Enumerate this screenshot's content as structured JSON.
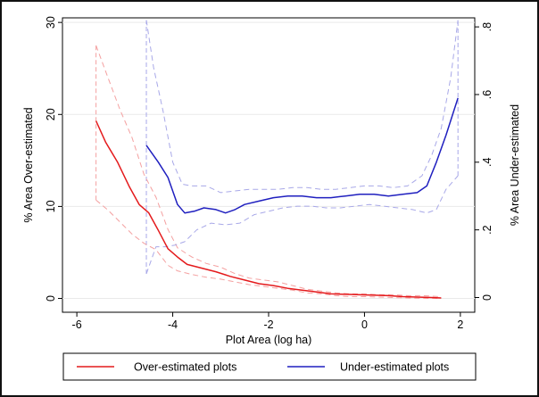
{
  "chart_data": {
    "type": "line",
    "title": "",
    "xlabel": "Plot Area (log ha)",
    "ylabel_left": "% Area Over-estimated",
    "ylabel_right": "% Area Under-estimated",
    "xlim": [
      -6.3,
      2.3
    ],
    "ylim_left": [
      -1.5,
      30.5
    ],
    "ylim_right": [
      -0.0435,
      0.8267
    ],
    "x_ticks": [
      -6,
      -4,
      -2,
      0,
      2
    ],
    "x_tick_labels": [
      "-6",
      "-4",
      "-2",
      "0",
      "2"
    ],
    "y_left_ticks": [
      0,
      10,
      20,
      30
    ],
    "y_left_tick_labels": [
      "0",
      "10",
      "20",
      "30"
    ],
    "y_right_ticks": [
      0,
      0.2,
      0.4,
      0.6,
      0.8
    ],
    "y_right_tick_labels": [
      "0",
      ".2",
      ".4",
      ".6",
      ".8"
    ],
    "grid": "horizontal",
    "legend_position": "bottom",
    "series": [
      {
        "name": "Over-estimated plots",
        "axis": "left",
        "color": "#e41a1c",
        "x": [
          -5.6,
          -5.4,
          -5.15,
          -4.9,
          -4.7,
          -4.5,
          -4.3,
          -4.1,
          -3.9,
          -3.7,
          -3.4,
          -3.1,
          -2.8,
          -2.5,
          -2.2,
          -1.9,
          -1.6,
          -1.3,
          -1.0,
          -0.7,
          -0.4,
          -0.1,
          0.2,
          0.5,
          0.8,
          1.1,
          1.4,
          1.6
        ],
        "y": [
          19.3,
          17.0,
          14.8,
          12.1,
          10.2,
          9.3,
          7.4,
          5.4,
          4.5,
          3.7,
          3.3,
          2.9,
          2.4,
          2.0,
          1.6,
          1.4,
          1.1,
          0.9,
          0.7,
          0.5,
          0.45,
          0.4,
          0.35,
          0.3,
          0.2,
          0.15,
          0.1,
          0.05
        ]
      },
      {
        "name": "Over-estimated plots (upper CI)",
        "axis": "left",
        "color": "#f4a0a0",
        "dashed": true,
        "x": [
          -5.6,
          -5.35,
          -5.1,
          -4.85,
          -4.6,
          -4.35,
          -4.1,
          -3.9,
          -3.6,
          -3.3,
          -3.0,
          -2.7,
          -2.4,
          -2.1,
          -1.8,
          -1.5,
          -1.2,
          -0.9,
          -0.6,
          -0.3,
          0.0,
          0.3,
          0.6,
          0.9,
          1.2,
          1.6
        ],
        "y": [
          27.5,
          24.0,
          20.5,
          17.5,
          13.5,
          11.0,
          7.5,
          5.5,
          4.5,
          3.8,
          3.4,
          2.7,
          2.2,
          2.0,
          1.8,
          1.4,
          1.0,
          0.8,
          0.6,
          0.5,
          0.5,
          0.4,
          0.4,
          0.3,
          0.3,
          0.2
        ]
      },
      {
        "name": "Over-estimated plots (lower CI)",
        "axis": "left",
        "color": "#f4a0a0",
        "dashed": true,
        "x": [
          -5.6,
          -5.35,
          -5.1,
          -4.85,
          -4.6,
          -4.35,
          -4.1,
          -3.9,
          -3.6,
          -3.3,
          -3.0,
          -2.7,
          -2.4,
          -2.1,
          -1.8,
          -1.5,
          -1.2,
          -0.9,
          -0.6,
          -0.3,
          0.0,
          0.3,
          0.6,
          0.9,
          1.2,
          1.6
        ],
        "y": [
          10.7,
          9.6,
          8.3,
          7.0,
          6.0,
          5.3,
          3.6,
          3.0,
          2.6,
          2.3,
          2.1,
          1.8,
          1.5,
          1.3,
          1.1,
          0.9,
          0.6,
          0.5,
          0.3,
          0.2,
          0.2,
          0.15,
          0.1,
          0.05,
          0.0,
          0.0
        ]
      },
      {
        "name": "Under-estimated plots",
        "axis": "right",
        "color": "#1f1fbf",
        "x": [
          -4.55,
          -4.3,
          -4.1,
          -3.9,
          -3.75,
          -3.55,
          -3.35,
          -3.1,
          -2.9,
          -2.7,
          -2.5,
          -2.2,
          -1.9,
          -1.6,
          -1.3,
          -1.0,
          -0.7,
          -0.4,
          -0.1,
          0.2,
          0.5,
          0.8,
          1.1,
          1.3,
          1.5,
          1.7,
          1.95
        ],
        "y": [
          0.45,
          0.4,
          0.355,
          0.275,
          0.25,
          0.255,
          0.265,
          0.26,
          0.25,
          0.26,
          0.275,
          0.285,
          0.295,
          0.3,
          0.3,
          0.295,
          0.295,
          0.3,
          0.305,
          0.305,
          0.3,
          0.305,
          0.31,
          0.33,
          0.4,
          0.48,
          0.59
        ]
      },
      {
        "name": "Under-estimated plots (upper CI)",
        "axis": "right",
        "color": "#a8a8e8",
        "dashed": true,
        "x": [
          -4.55,
          -4.4,
          -4.2,
          -4.0,
          -3.8,
          -3.6,
          -3.3,
          -3.0,
          -2.7,
          -2.4,
          -2.1,
          -1.8,
          -1.5,
          -1.2,
          -0.9,
          -0.6,
          -0.3,
          0.0,
          0.3,
          0.6,
          0.9,
          1.2,
          1.4,
          1.6,
          1.8,
          1.95
        ],
        "y": [
          0.82,
          0.68,
          0.55,
          0.4,
          0.335,
          0.33,
          0.33,
          0.31,
          0.315,
          0.32,
          0.32,
          0.32,
          0.325,
          0.325,
          0.32,
          0.32,
          0.325,
          0.33,
          0.33,
          0.325,
          0.33,
          0.36,
          0.42,
          0.5,
          0.65,
          0.82
        ]
      },
      {
        "name": "Under-estimated plots (lower CI)",
        "axis": "right",
        "color": "#a8a8e8",
        "dashed": true,
        "x": [
          -4.55,
          -4.35,
          -4.15,
          -3.95,
          -3.75,
          -3.5,
          -3.2,
          -2.9,
          -2.6,
          -2.3,
          -2.0,
          -1.7,
          -1.4,
          -1.1,
          -0.8,
          -0.5,
          -0.2,
          0.1,
          0.4,
          0.7,
          1.0,
          1.3,
          1.5,
          1.7,
          1.95
        ],
        "y": [
          0.07,
          0.15,
          0.15,
          0.155,
          0.165,
          0.2,
          0.22,
          0.215,
          0.22,
          0.245,
          0.255,
          0.265,
          0.27,
          0.27,
          0.265,
          0.265,
          0.27,
          0.275,
          0.27,
          0.265,
          0.26,
          0.25,
          0.26,
          0.32,
          0.36
        ]
      }
    ],
    "vertical_ci_edges": [
      {
        "x": -5.6,
        "axis": "left",
        "y_from": 10.7,
        "y_to": 27.5,
        "color": "#f4a0a0"
      },
      {
        "x": -4.55,
        "axis": "right",
        "y_from": 0.07,
        "y_to": 0.82,
        "color": "#a8a8e8"
      },
      {
        "x": 1.95,
        "axis": "right",
        "y_from": 0.36,
        "y_to": 0.82,
        "color": "#a8a8e8"
      }
    ],
    "legend": [
      {
        "label": "Over-estimated plots",
        "color": "#e41a1c"
      },
      {
        "label": "Under-estimated plots",
        "color": "#1f1fbf"
      }
    ]
  }
}
